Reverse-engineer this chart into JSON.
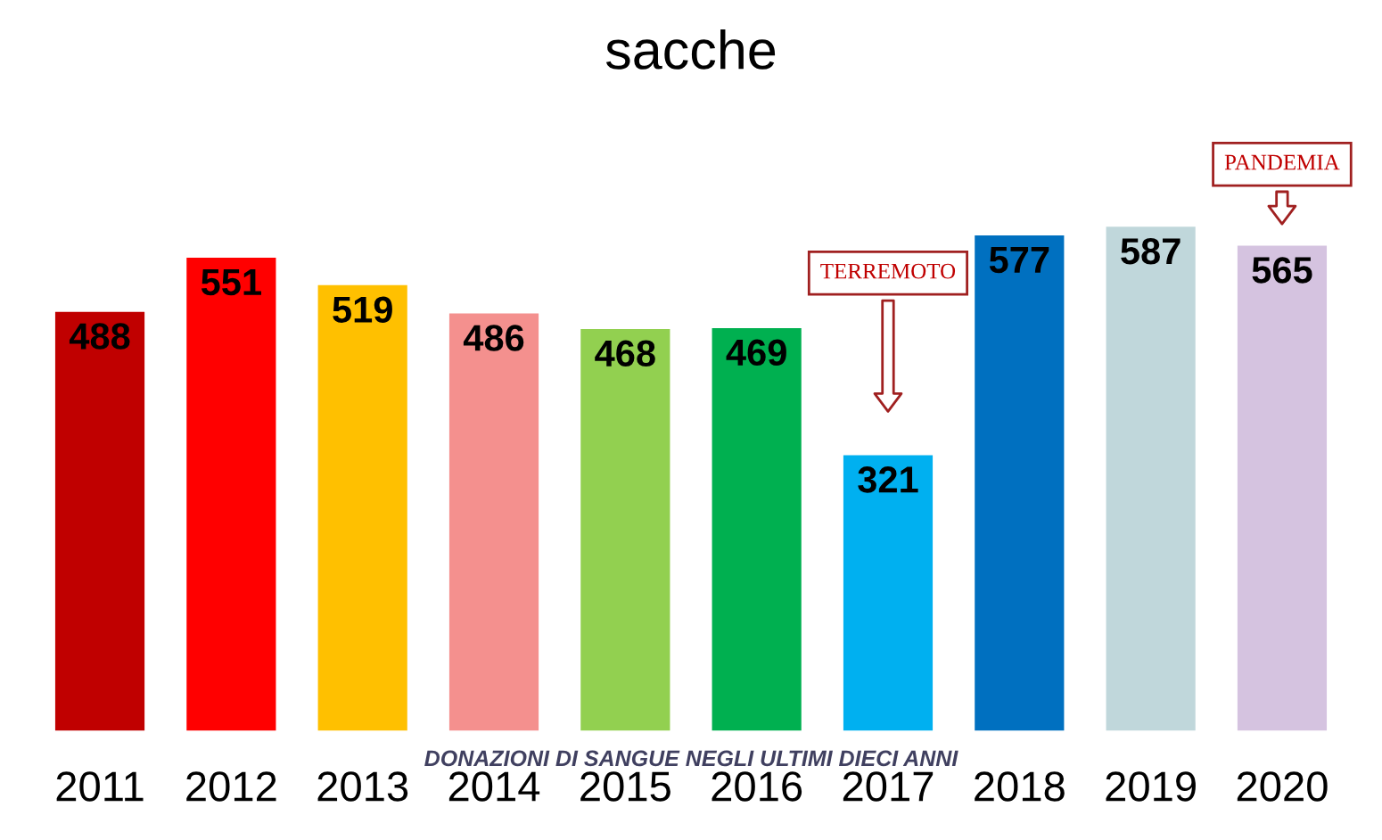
{
  "chart_data": {
    "type": "bar",
    "title": "sacche",
    "categories": [
      "2011",
      "2012",
      "2013",
      "2014",
      "2015",
      "2016",
      "2017",
      "2018",
      "2019",
      "2020"
    ],
    "values": [
      488,
      551,
      519,
      486,
      468,
      469,
      321,
      577,
      587,
      565
    ],
    "colors": [
      "#c00000",
      "#ff0000",
      "#ffc000",
      "#f4908e",
      "#92d050",
      "#00b050",
      "#00b0f0",
      "#0070c0",
      "#c0d7db",
      "#d5c3e0"
    ],
    "data_labels": true,
    "grid": false,
    "legend": false,
    "annotations": [
      "TERREMOTO",
      "PANDEMIA",
      "DONAZIONI DI SANGUE NEGLI ULTIMI DIECI ANNI"
    ]
  }
}
